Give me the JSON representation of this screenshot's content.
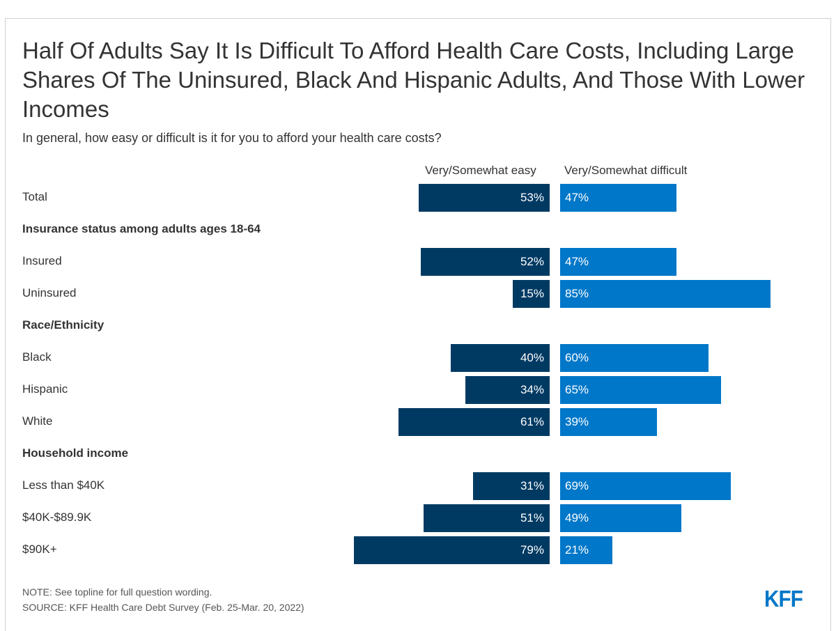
{
  "title": "Half Of Adults Say It Is Difficult To Afford Health Care Costs, Including Large Shares Of The Uninsured, Black And Hispanic Adults, And Those With Lower Incomes",
  "subtitle": "In general, how easy or difficult is it for you to afford your health care costs?",
  "footer": {
    "note": "NOTE: See topline for full question wording.",
    "source": "SOURCE: KFF Health Care Debt Survey (Feb. 25-Mar. 20, 2022)",
    "logo": "KFF"
  },
  "colors": {
    "easy": "#003a63",
    "difficult": "#0077c8"
  },
  "chart_data": {
    "type": "bar",
    "orientation": "horizontal-diverging",
    "title": "Half Of Adults Say It Is Difficult To Afford Health Care Costs, Including Large Shares Of The Uninsured, Black And Hispanic Adults, And Those With Lower Incomes",
    "subtitle": "In general, how easy or difficult is it for you to afford your health care costs?",
    "unit": "%",
    "series": [
      {
        "name": "Very/Somewhat easy",
        "color": "#003a63"
      },
      {
        "name": "Very/Somewhat difficult",
        "color": "#0077c8"
      }
    ],
    "rows": [
      {
        "type": "data",
        "label": "Total",
        "easy": 53,
        "difficult": 47
      },
      {
        "type": "section",
        "label": "Insurance status among adults ages 18-64"
      },
      {
        "type": "data",
        "label": "Insured",
        "easy": 52,
        "difficult": 47
      },
      {
        "type": "data",
        "label": "Uninsured",
        "easy": 15,
        "difficult": 85
      },
      {
        "type": "section",
        "label": "Race/Ethnicity"
      },
      {
        "type": "data",
        "label": "Black",
        "easy": 40,
        "difficult": 60
      },
      {
        "type": "data",
        "label": "Hispanic",
        "easy": 34,
        "difficult": 65
      },
      {
        "type": "data",
        "label": "White",
        "easy": 61,
        "difficult": 39
      },
      {
        "type": "section",
        "label": "Household income"
      },
      {
        "type": "data",
        "label": "Less than $40K",
        "easy": 31,
        "difficult": 69
      },
      {
        "type": "data",
        "label": "$40K-$89.9K",
        "easy": 51,
        "difficult": 49
      },
      {
        "type": "data",
        "label": "$90K+",
        "easy": 79,
        "difficult": 21
      }
    ],
    "grid": false
  }
}
